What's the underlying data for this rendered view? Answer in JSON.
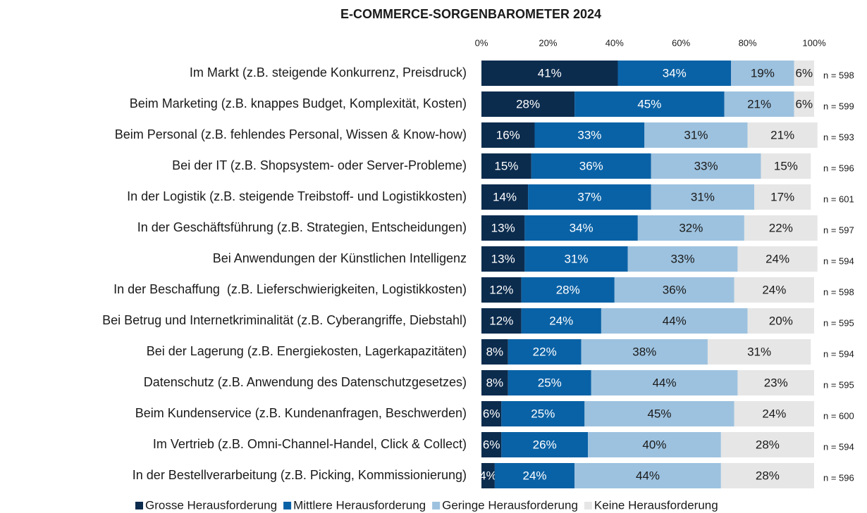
{
  "chart_data": {
    "type": "stacked_barh",
    "title": "E-COMMERCE-SORGENBAROMETER 2024",
    "categories": [
      "Im Markt (z.B. steigende Konkurrenz, Preisdruck)",
      "Beim Marketing (z.B. knappes Budget, Komplexität, Kosten)",
      "Beim Personal (z.B. fehlendes Personal, Wissen & Know-how)",
      "Bei der IT (z.B. Shopsystem- oder Server-Probleme)",
      "In der Logistik (z.B. steigende Treibstoff- und Logistikkosten)",
      "In der Geschäftsführung (z.B. Strategien, Entscheidungen)",
      "Bei Anwendungen der Künstlichen Intelligenz",
      "In der Beschaffung  (z.B. Lieferschwierigkeiten, Logistikkosten)",
      "Bei Betrug und Internetkriminalität (z.B. Cyberangriffe, Diebstahl)",
      "Bei der Lagerung (z.B. Energiekosten, Lagerkapazitäten)",
      "Datenschutz (z.B. Anwendung des Datenschutzgesetzes)",
      "Beim Kundenservice (z.B. Kundenanfragen, Beschwerden)",
      "Im Vertrieb (z.B. Omni-Channel-Handel, Click & Collect)",
      "In der Bestellverarbeitung (z.B. Picking, Kommissionierung)"
    ],
    "n_labels": [
      "n = 598",
      "n = 599",
      "n = 593",
      "n = 596",
      "n = 601",
      "n = 597",
      "n = 594",
      "n = 598",
      "n = 595",
      "n = 594",
      "n = 595",
      "n = 600",
      "n = 594",
      "n = 596"
    ],
    "series": [
      {
        "name": "Grosse Herausforderung",
        "color": "#0c2c4e",
        "label_color": "#ffffff",
        "values": [
          41,
          28,
          16,
          15,
          14,
          13,
          13,
          12,
          12,
          8,
          8,
          6,
          6,
          4
        ],
        "value_labels": [
          "41%",
          "28%",
          "16%",
          "15%",
          "14%",
          "13%",
          "13%",
          "12%",
          "12%",
          "8%",
          "8%",
          "6%",
          "6%",
          "4%"
        ]
      },
      {
        "name": "Mittlere Herausforderung",
        "color": "#0a62a6",
        "label_color": "#ffffff",
        "values": [
          34,
          45,
          33,
          36,
          37,
          34,
          31,
          28,
          24,
          22,
          25,
          25,
          26,
          24
        ],
        "value_labels": [
          "34%",
          "45%",
          "33%",
          "36%",
          "37%",
          "34%",
          "31%",
          "28%",
          "24%",
          "22%",
          "25%",
          "25%",
          "26%",
          "24%"
        ]
      },
      {
        "name": "Geringe Herausforderung",
        "color": "#9dc2df",
        "label_color": "#1a1a1a",
        "values": [
          19,
          21,
          31,
          33,
          31,
          32,
          33,
          36,
          44,
          38,
          44,
          45,
          40,
          44
        ],
        "value_labels": [
          "19%",
          "21%",
          "31%",
          "33%",
          "31%",
          "32%",
          "33%",
          "36%",
          "44%",
          "38%",
          "44%",
          "45%",
          "40%",
          "44%"
        ]
      },
      {
        "name": "Keine Herausforderung",
        "color": "#e6e6e6",
        "label_color": "#1a1a1a",
        "values": [
          6,
          6,
          21,
          15,
          17,
          22,
          24,
          24,
          20,
          31,
          23,
          24,
          28,
          28
        ],
        "value_labels": [
          "6%",
          "6%",
          "21%",
          "15%",
          "17%",
          "22%",
          "24%",
          "24%",
          "20%",
          "31%",
          "23%",
          "24%",
          "28%",
          "28%"
        ]
      }
    ],
    "xlim": [
      0,
      100
    ],
    "xticks": [
      {
        "value": 0,
        "label": "0%"
      },
      {
        "value": 20,
        "label": "20%"
      },
      {
        "value": 40,
        "label": "40%"
      },
      {
        "value": 60,
        "label": "60%"
      },
      {
        "value": 80,
        "label": "80%"
      },
      {
        "value": 100,
        "label": "100%"
      }
    ],
    "legend": "bottom"
  }
}
